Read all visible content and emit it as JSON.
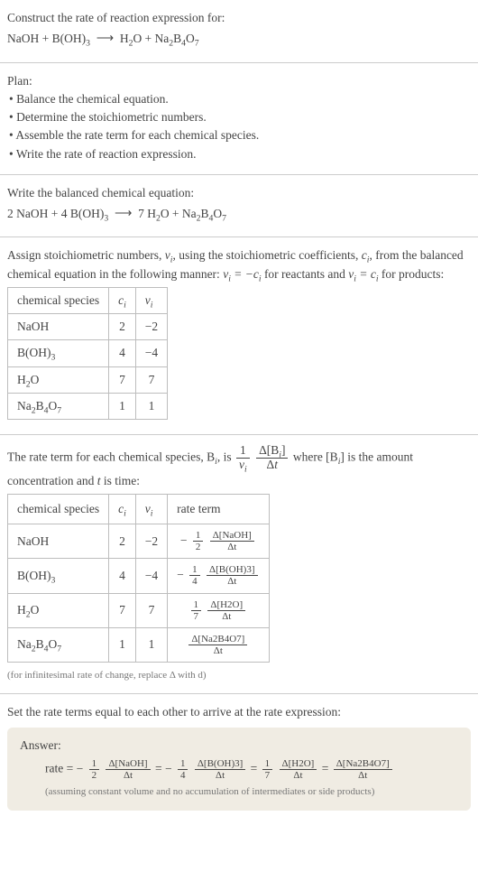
{
  "intro": {
    "title": "Construct the rate of reaction expression for:",
    "equation_lhs": "NaOH + B(OH)",
    "equation_rhs": "H₂O + Na₂B₄O₇"
  },
  "plan": {
    "title": "Plan:",
    "items": [
      "• Balance the chemical equation.",
      "• Determine the stoichiometric numbers.",
      "• Assemble the rate term for each chemical species.",
      "• Write the rate of reaction expression."
    ]
  },
  "balanced": {
    "title": "Write the balanced chemical equation:",
    "equation": "2 NaOH + 4 B(OH)₃  ⟶  7 H₂O + Na₂B₄O₇"
  },
  "assign": {
    "text_a": "Assign stoichiometric numbers, ",
    "nu_i": "ν",
    "text_b": ", using the stoichiometric coefficients, ",
    "c_i": "c",
    "text_c": ", from the balanced chemical equation in the following manner: ",
    "rel1": "νᵢ = −cᵢ",
    "text_d": " for reactants and ",
    "rel2": "νᵢ = cᵢ",
    "text_e": " for products:",
    "table": {
      "headers": [
        "chemical species",
        "cᵢ",
        "νᵢ"
      ],
      "rows": [
        {
          "species": "NaOH",
          "c": "2",
          "nu": "−2"
        },
        {
          "species": "B(OH)₃",
          "c": "4",
          "nu": "−4"
        },
        {
          "species": "H₂O",
          "c": "7",
          "nu": "7"
        },
        {
          "species": "Na₂B₄O₇",
          "c": "1",
          "nu": "1"
        }
      ]
    }
  },
  "rate_term": {
    "text_a": "The rate term for each chemical species, B",
    "text_b": ", is ",
    "text_c": " where [B",
    "text_d": "] is the amount concentration and ",
    "text_e": " is time:",
    "t_var": "t",
    "table": {
      "headers": [
        "chemical species",
        "cᵢ",
        "νᵢ",
        "rate term"
      ],
      "rows": [
        {
          "species": "NaOH",
          "c": "2",
          "nu": "−2",
          "sign": "−",
          "coef_num": "1",
          "coef_den": "2",
          "d_species": "Δ[NaOH]"
        },
        {
          "species": "B(OH)₃",
          "c": "4",
          "nu": "−4",
          "sign": "−",
          "coef_num": "1",
          "coef_den": "4",
          "d_species": "Δ[B(OH)3]"
        },
        {
          "species": "H₂O",
          "c": "7",
          "nu": "7",
          "sign": "",
          "coef_num": "1",
          "coef_den": "7",
          "d_species": "Δ[H2O]"
        },
        {
          "species": "Na₂B₄O₇",
          "c": "1",
          "nu": "1",
          "sign": "",
          "coef_num": "",
          "coef_den": "",
          "d_species": "Δ[Na2B4O7]"
        }
      ]
    },
    "note": "(for infinitesimal rate of change, replace Δ with d)"
  },
  "final": {
    "title": "Set the rate terms equal to each other to arrive at the rate expression:",
    "answer_label": "Answer:",
    "rate_prefix": "rate = ",
    "note": "(assuming constant volume and no accumulation of intermediates or side products)"
  },
  "sym": {
    "arrow": "⟶",
    "delta_t": "Δt",
    "i": "i",
    "nu": "ν",
    "c": "c"
  }
}
